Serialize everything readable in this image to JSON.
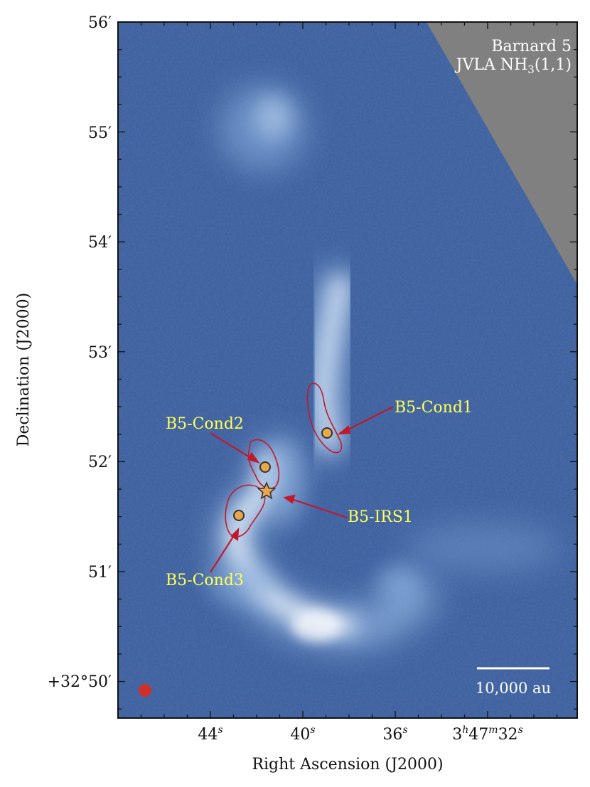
{
  "figure": {
    "title_line1": "Barnard 5",
    "title_line2_prefix": "JVLA NH",
    "title_line2_sub": "3",
    "title_line2_suffix": "(1,1)",
    "xlabel": "Right Ascension (J2000)",
    "ylabel": "Declination (J2000)",
    "scale_bar_label": "10,000 au"
  },
  "axes": {
    "x_ticks": [
      {
        "label": "44",
        "sup": "s"
      },
      {
        "label": "40",
        "sup": "s"
      },
      {
        "label": "36",
        "sup": "s"
      },
      {
        "label": "3",
        "sup": "h",
        "label2": "47",
        "sup2": "m",
        "label3": "32",
        "sup3": "s"
      }
    ],
    "y_ticks": [
      "56′",
      "55′",
      "54′",
      "53′",
      "52′",
      "51′",
      "+32°50′"
    ]
  },
  "sources": [
    {
      "name": "B5-Cond1",
      "marker": "circle"
    },
    {
      "name": "B5-Cond2",
      "marker": "circle"
    },
    {
      "name": "B5-Cond3",
      "marker": "circle"
    },
    {
      "name": "B5-IRS1",
      "marker": "star"
    }
  ],
  "colors": {
    "background_map": "#3c5f9e",
    "emission": "#ffffff",
    "blank_region": "#808080",
    "contour": "#c0192c",
    "marker_fill": "#e8a84a",
    "label_text": "#ffff55",
    "beam": "#d0302a"
  }
}
